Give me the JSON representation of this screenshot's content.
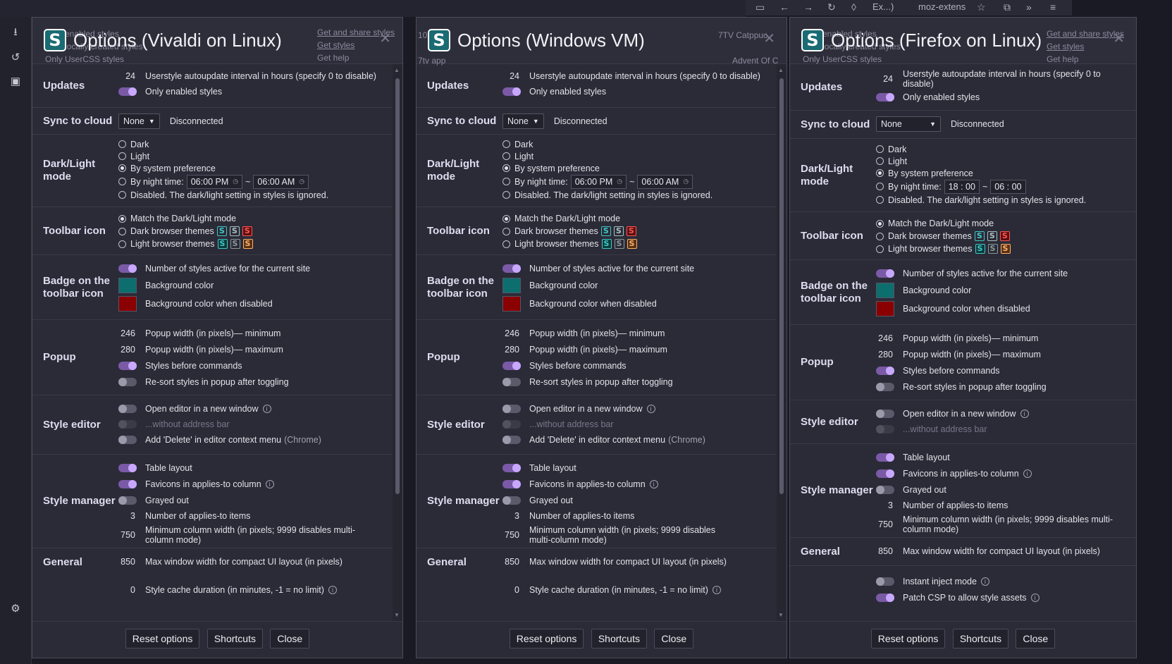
{
  "browser_bar": {
    "tab1": "Ex...)",
    "tab2": "moz-extens"
  },
  "sidebar_icons": [
    "download-icon",
    "history-icon",
    "storage-icon",
    "settings-icon"
  ],
  "windows": [
    {
      "title": "Options (Vivaldi on Linux)",
      "ghost": {
        "l1": "Only enabled styles",
        "l2": "Only locally created styles",
        "l3": "Only UserCSS styles",
        "r1": "Get and share styles",
        "r2": "Get styles",
        "r3": "Get help"
      },
      "updates": {
        "title": "Updates",
        "interval": "24",
        "interval_label": "Userstyle autoupdate interval in hours (specify 0 to disable)",
        "only_enabled": "Only enabled styles"
      },
      "sync": {
        "title": "Sync to cloud",
        "select": "None",
        "status": "Disconnected"
      },
      "dark": {
        "title": "Dark/Light mode",
        "o1": "Dark",
        "o2": "Light",
        "o3": "By system preference",
        "o4": "By night time:",
        "t1": "06:00 PM",
        "sep": "~",
        "t2": "06:00 AM",
        "o5": "Disabled. The dark/light setting in styles is ignored."
      },
      "toolbar": {
        "title": "Toolbar icon",
        "o1": "Match the Dark/Light mode",
        "o2": "Dark browser themes",
        "o3": "Light browser themes",
        "glyph": "S"
      },
      "badge": {
        "title": "Badge on the toolbar icon",
        "o1": "Number of styles active for the current site",
        "o2": "Background color",
        "o3": "Background color when disabled",
        "c1": "#0d6e6e",
        "c2": "#8a0000"
      },
      "popup": {
        "title": "Popup",
        "min": "246",
        "min_label": "Popup width (in pixels)— minimum",
        "max": "280",
        "max_label": "Popup width (in pixels)— maximum",
        "o3": "Styles before commands",
        "o4": "Re-sort styles in popup after toggling"
      },
      "editor": {
        "title": "Style editor",
        "o1": "Open editor in a new window",
        "o2": "...without address bar",
        "o3": "Add 'Delete' in editor context menu",
        "o3b": "(Chrome)"
      },
      "manager": {
        "title": "Style manager",
        "o1": "Table layout",
        "o2": "Favicons in applies-to column",
        "o3": "Grayed out",
        "n4": "3",
        "o4": "Number of applies-to items",
        "n5": "750",
        "o5": "Minimum column width (in pixels; 9999 disables multi-column mode)"
      },
      "general": {
        "title": "General",
        "n1": "850",
        "o1": "Max window width for compact UI layout (in pixels)",
        "n2": "0",
        "o2": "Style cache duration (in minutes, -1 = no limit)"
      },
      "footer": {
        "reset": "Reset options",
        "shortcuts": "Shortcuts",
        "close": "Close"
      },
      "close_glyph": "✕"
    },
    {
      "title": "Options (Windows VM)",
      "ghost": {
        "l1": "10.",
        "l2": "7tv app",
        "r1": "7TV Catppuc",
        "r2": "Advent Of C"
      },
      "updates": {
        "title": "Updates",
        "interval": "24",
        "interval_label": "Userstyle autoupdate interval in hours (specify 0 to disable)",
        "only_enabled": "Only enabled styles"
      },
      "sync": {
        "title": "Sync to cloud",
        "select": "None",
        "status": "Disconnected"
      },
      "dark": {
        "title": "Dark/Light mode",
        "o1": "Dark",
        "o2": "Light",
        "o3": "By system preference",
        "o4": "By night time:",
        "t1": "06:00 PM",
        "sep": "~",
        "t2": "06:00 AM",
        "o5": "Disabled. The dark/light setting in styles is ignored."
      },
      "toolbar": {
        "title": "Toolbar icon",
        "o1": "Match the Dark/Light mode",
        "o2": "Dark browser themes",
        "o3": "Light browser themes",
        "glyph": "S"
      },
      "badge": {
        "title": "Badge on the toolbar icon",
        "o1": "Number of styles active for the current site",
        "o2": "Background color",
        "o3": "Background color when disabled",
        "c1": "#0d6e6e",
        "c2": "#8a0000"
      },
      "popup": {
        "title": "Popup",
        "min": "246",
        "min_label": "Popup width (in pixels)— minimum",
        "max": "280",
        "max_label": "Popup width (in pixels)— maximum",
        "o3": "Styles before commands",
        "o4": "Re-sort styles in popup after toggling"
      },
      "editor": {
        "title": "Style editor",
        "o1": "Open editor in a new window",
        "o2": "...without address bar",
        "o3": "Add 'Delete' in editor context menu",
        "o3b": "(Chrome)"
      },
      "manager": {
        "title": "Style manager",
        "o1": "Table layout",
        "o2": "Favicons in applies-to column",
        "o3": "Grayed out",
        "n4": "3",
        "o4": "Number of applies-to items",
        "n5": "750",
        "o5": "Minimum column width (in pixels; 9999 disables multi-column mode)"
      },
      "general": {
        "title": "General",
        "n1": "850",
        "o1": "Max window width for compact UI layout (in pixels)",
        "n2": "0",
        "o2": "Style cache duration (in minutes, -1 = no limit)"
      },
      "footer": {
        "reset": "Reset options",
        "shortcuts": "Shortcuts",
        "close": "Close"
      },
      "close_glyph": "✕"
    },
    {
      "title": "Options (Firefox on Linux)",
      "ghost": {
        "l1": "Only enabled styles",
        "l2": "Only locally created styles",
        "l3": "Only UserCSS styles",
        "r1": "Get and share styles",
        "r2": "Get styles",
        "r3": "Get help"
      },
      "updates": {
        "title": "Updates",
        "interval": "24",
        "interval_label": "Userstyle autoupdate interval in hours (specify 0 to disable)",
        "only_enabled": "Only enabled styles"
      },
      "sync": {
        "title": "Sync to cloud",
        "select": "None",
        "status": "Disconnected"
      },
      "dark": {
        "title": "Dark/Light mode",
        "o1": "Dark",
        "o2": "Light",
        "o3": "By system preference",
        "o4": "By night time:",
        "t1": "18 : 00",
        "sep": "~",
        "t2": "06 : 00",
        "o5": "Disabled. The dark/light setting in styles is ignored."
      },
      "toolbar": {
        "title": "Toolbar icon",
        "o1": "Match the Dark/Light mode",
        "o2": "Dark browser themes",
        "o3": "Light browser themes",
        "glyph": "S"
      },
      "badge": {
        "title": "Badge on the toolbar icon",
        "o1": "Number of styles active for the current site",
        "o2": "Background color",
        "o3": "Background color when disabled",
        "c1": "#0d6e6e",
        "c2": "#8a0000"
      },
      "popup": {
        "title": "Popup",
        "min": "246",
        "min_label": "Popup width (in pixels)— minimum",
        "max": "280",
        "max_label": "Popup width (in pixels)— maximum",
        "o3": "Styles before commands",
        "o4": "Re-sort styles in popup after toggling"
      },
      "editor": {
        "title": "Style editor",
        "o1": "Open editor in a new window",
        "o2": "...without address bar"
      },
      "manager": {
        "title": "Style manager",
        "o1": "Table layout",
        "o2": "Favicons in applies-to column",
        "o3": "Grayed out",
        "n4": "3",
        "o4": "Number of applies-to items",
        "n5": "750",
        "o5": "Minimum column width (in pixels; 9999 disables multi-column mode)"
      },
      "general": {
        "title": "General",
        "n1": "850",
        "o1": "Max window width for compact UI layout (in pixels)",
        "o2": "Instant inject mode",
        "o3": "Patch CSP to allow style assets"
      },
      "footer": {
        "reset": "Reset options",
        "shortcuts": "Shortcuts",
        "close": "Close"
      },
      "close_glyph": "✕"
    }
  ]
}
